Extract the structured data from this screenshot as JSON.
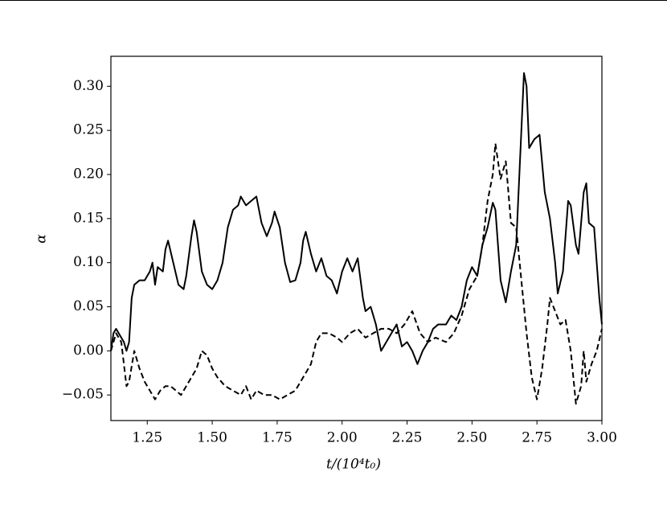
{
  "chart_data": {
    "type": "line",
    "xlabel": "t/(10⁴t₀)",
    "ylabel": "α",
    "xlim": [
      1.11,
      3.0
    ],
    "ylim": [
      -0.079,
      0.334
    ],
    "xticks": [
      1.25,
      {
        "value": 1.5,
        "label": "1.50"
      },
      1.75,
      {
        "value": 2.0,
        "label": "2.00"
      },
      2.25,
      {
        "value": 2.5,
        "label": "2.50"
      },
      2.75,
      {
        "value": 3.0,
        "label": "3.00"
      }
    ],
    "yticks": [
      {
        "value": -0.05,
        "label": "−0.05"
      },
      {
        "value": 0,
        "label": "0.00"
      },
      0.05,
      {
        "value": 0.1,
        "label": "0.10"
      },
      0.15,
      {
        "value": 0.2,
        "label": "0.20"
      },
      0.25,
      {
        "value": 0.3,
        "label": "0.30"
      }
    ],
    "series": [
      {
        "color": "#000000",
        "dashed": false,
        "x": [
          1.11,
          1.12,
          1.13,
          1.15,
          1.16,
          1.17,
          1.18,
          1.19,
          1.2,
          1.22,
          1.24,
          1.26,
          1.27,
          1.28,
          1.29,
          1.31,
          1.32,
          1.33,
          1.35,
          1.37,
          1.39,
          1.4,
          1.42,
          1.43,
          1.44,
          1.46,
          1.48,
          1.5,
          1.52,
          1.54,
          1.56,
          1.58,
          1.6,
          1.61,
          1.63,
          1.65,
          1.67,
          1.69,
          1.71,
          1.73,
          1.74,
          1.76,
          1.78,
          1.8,
          1.82,
          1.84,
          1.85,
          1.86,
          1.88,
          1.9,
          1.92,
          1.94,
          1.96,
          1.98,
          2.0,
          2.02,
          2.04,
          2.06,
          2.08,
          2.09,
          2.11,
          2.13,
          2.15,
          2.17,
          2.19,
          2.21,
          2.23,
          2.25,
          2.27,
          2.29,
          2.31,
          2.33,
          2.35,
          2.37,
          2.4,
          2.42,
          2.44,
          2.46,
          2.48,
          2.5,
          2.52,
          2.54,
          2.56,
          2.58,
          2.59,
          2.61,
          2.63,
          2.65,
          2.67,
          2.69,
          2.7,
          2.71,
          2.72,
          2.74,
          2.76,
          2.78,
          2.8,
          2.82,
          2.83,
          2.85,
          2.87,
          2.88,
          2.9,
          2.91,
          2.93,
          2.94,
          2.95,
          2.97,
          2.99,
          3.0
        ],
        "values": [
          0.0,
          0.02,
          0.025,
          0.015,
          0.01,
          0.0,
          0.01,
          0.06,
          0.075,
          0.08,
          0.08,
          0.09,
          0.1,
          0.075,
          0.095,
          0.09,
          0.115,
          0.125,
          0.1,
          0.075,
          0.07,
          0.085,
          0.13,
          0.148,
          0.135,
          0.09,
          0.075,
          0.07,
          0.08,
          0.1,
          0.14,
          0.16,
          0.165,
          0.175,
          0.165,
          0.17,
          0.175,
          0.145,
          0.13,
          0.145,
          0.158,
          0.14,
          0.1,
          0.078,
          0.08,
          0.1,
          0.125,
          0.135,
          0.11,
          0.09,
          0.105,
          0.085,
          0.08,
          0.065,
          0.09,
          0.105,
          0.09,
          0.105,
          0.06,
          0.045,
          0.05,
          0.03,
          0.0,
          0.01,
          0.02,
          0.03,
          0.005,
          0.01,
          0.0,
          -0.015,
          0.0,
          0.01,
          0.025,
          0.03,
          0.03,
          0.04,
          0.035,
          0.05,
          0.08,
          0.095,
          0.085,
          0.12,
          0.14,
          0.168,
          0.16,
          0.08,
          0.055,
          0.09,
          0.12,
          0.25,
          0.315,
          0.3,
          0.23,
          0.24,
          0.245,
          0.18,
          0.15,
          0.1,
          0.065,
          0.09,
          0.17,
          0.165,
          0.12,
          0.11,
          0.18,
          0.19,
          0.145,
          0.14,
          0.06,
          0.03
        ]
      },
      {
        "color": "#000000",
        "dashed": true,
        "x": [
          1.11,
          1.13,
          1.15,
          1.17,
          1.18,
          1.2,
          1.22,
          1.24,
          1.26,
          1.28,
          1.3,
          1.32,
          1.34,
          1.36,
          1.38,
          1.4,
          1.42,
          1.44,
          1.46,
          1.48,
          1.5,
          1.52,
          1.55,
          1.58,
          1.61,
          1.63,
          1.65,
          1.67,
          1.7,
          1.73,
          1.76,
          1.79,
          1.82,
          1.85,
          1.88,
          1.9,
          1.92,
          1.95,
          1.98,
          2.0,
          2.03,
          2.06,
          2.09,
          2.12,
          2.15,
          2.18,
          2.21,
          2.24,
          2.27,
          2.3,
          2.33,
          2.36,
          2.4,
          2.43,
          2.46,
          2.49,
          2.52,
          2.54,
          2.56,
          2.58,
          2.59,
          2.61,
          2.63,
          2.65,
          2.67,
          2.69,
          2.71,
          2.73,
          2.75,
          2.77,
          2.79,
          2.8,
          2.82,
          2.84,
          2.86,
          2.88,
          2.9,
          2.92,
          2.93,
          2.94,
          2.96,
          2.98,
          3.0
        ],
        "values": [
          0.0,
          0.02,
          0.01,
          -0.04,
          -0.035,
          0.0,
          -0.02,
          -0.035,
          -0.045,
          -0.055,
          -0.045,
          -0.04,
          -0.04,
          -0.045,
          -0.05,
          -0.04,
          -0.03,
          -0.02,
          0.0,
          -0.005,
          -0.02,
          -0.03,
          -0.04,
          -0.045,
          -0.05,
          -0.04,
          -0.055,
          -0.045,
          -0.05,
          -0.05,
          -0.055,
          -0.05,
          -0.045,
          -0.03,
          -0.015,
          0.01,
          0.02,
          0.02,
          0.015,
          0.01,
          0.02,
          0.025,
          0.015,
          0.02,
          0.025,
          0.025,
          0.02,
          0.03,
          0.045,
          0.02,
          0.01,
          0.015,
          0.01,
          0.02,
          0.04,
          0.07,
          0.085,
          0.12,
          0.17,
          0.2,
          0.235,
          0.195,
          0.215,
          0.145,
          0.14,
          0.08,
          0.02,
          -0.03,
          -0.055,
          -0.02,
          0.03,
          0.06,
          0.045,
          0.03,
          0.035,
          0.0,
          -0.06,
          -0.04,
          0.0,
          -0.035,
          -0.015,
          0.0,
          0.025
        ]
      }
    ]
  }
}
